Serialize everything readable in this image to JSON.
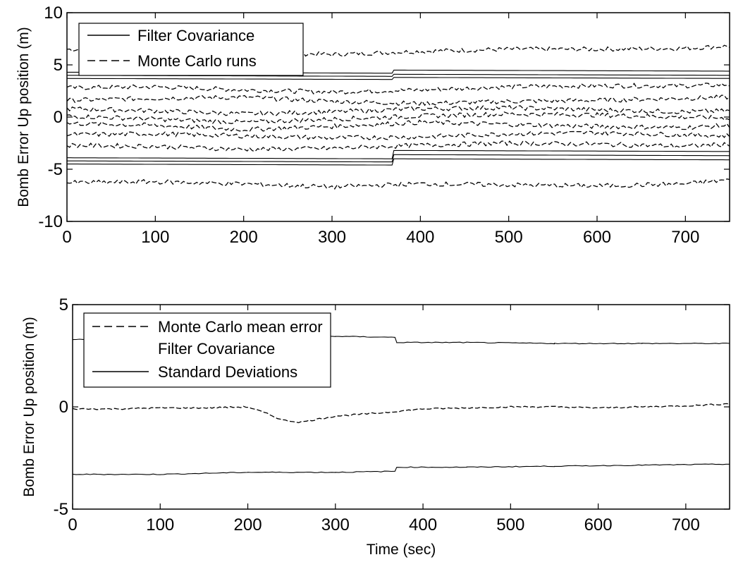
{
  "chart_data": [
    {
      "type": "line",
      "title": "",
      "xlabel": "",
      "ylabel": "Bomb Error Up position (m)",
      "xlim": [
        0,
        750
      ],
      "ylim": [
        -10,
        10
      ],
      "xticks": [
        "0",
        "100",
        "200",
        "300",
        "400",
        "500",
        "600",
        "700"
      ],
      "yticks": [
        "-10",
        "-5",
        "0",
        "5",
        "10"
      ],
      "legend_position": "top-left",
      "legend": [
        {
          "label": "Filter Covariance",
          "style": "solid"
        },
        {
          "label": "Monte Carlo runs",
          "style": "dashed"
        }
      ],
      "series": [
        {
          "style": "solid",
          "x": [
            0,
            370,
            370,
            750
          ],
          "values": [
            4.3,
            4.2,
            4.5,
            4.4
          ]
        },
        {
          "style": "solid",
          "x": [
            0,
            370,
            370,
            750
          ],
          "values": [
            4.0,
            3.9,
            4.1,
            4.0
          ]
        },
        {
          "style": "solid",
          "x": [
            0,
            370,
            370,
            750
          ],
          "values": [
            3.7,
            3.6,
            3.8,
            3.7
          ]
        },
        {
          "style": "solid",
          "x": [
            0,
            370,
            370,
            750
          ],
          "values": [
            -3.9,
            -4.0,
            -3.2,
            -3.3
          ]
        },
        {
          "style": "solid",
          "x": [
            0,
            370,
            370,
            750
          ],
          "values": [
            -4.2,
            -4.3,
            -3.6,
            -3.7
          ]
        },
        {
          "style": "solid",
          "x": [
            0,
            370,
            370,
            750
          ],
          "values": [
            -4.5,
            -4.6,
            -4.0,
            -4.1
          ]
        },
        {
          "style": "dashed",
          "x": [
            0,
            100,
            200,
            300,
            400,
            500,
            600,
            700,
            750
          ],
          "values": [
            6.5,
            6.3,
            6.2,
            6.0,
            6.3,
            6.5,
            6.5,
            6.6,
            6.8
          ]
        },
        {
          "style": "dashed",
          "x": [
            0,
            100,
            200,
            300,
            400,
            500,
            600,
            700,
            750
          ],
          "values": [
            2.8,
            2.9,
            2.6,
            2.4,
            2.6,
            2.9,
            3.0,
            3.0,
            3.1
          ]
        },
        {
          "style": "dashed",
          "x": [
            0,
            100,
            200,
            300,
            400,
            500,
            600,
            700,
            750
          ],
          "values": [
            1.6,
            1.8,
            1.9,
            1.5,
            1.3,
            1.5,
            1.6,
            1.8,
            1.9
          ]
        },
        {
          "style": "dashed",
          "x": [
            0,
            100,
            200,
            300,
            400,
            500,
            600,
            700,
            750
          ],
          "values": [
            0.8,
            0.6,
            0.3,
            0.5,
            0.8,
            0.9,
            0.7,
            0.5,
            0.6
          ]
        },
        {
          "style": "dashed",
          "x": [
            0,
            100,
            200,
            300,
            400,
            500,
            600,
            700,
            750
          ],
          "values": [
            0.1,
            -0.2,
            -0.5,
            -0.2,
            0.1,
            0.3,
            0.2,
            0.0,
            -0.1
          ]
        },
        {
          "style": "dashed",
          "x": [
            0,
            100,
            200,
            300,
            400,
            500,
            600,
            700,
            750
          ],
          "values": [
            -0.6,
            -0.8,
            -1.2,
            -0.9,
            -0.5,
            -0.7,
            -0.9,
            -1.0,
            -0.8
          ]
        },
        {
          "style": "dashed",
          "x": [
            0,
            100,
            200,
            300,
            400,
            500,
            600,
            700,
            750
          ],
          "values": [
            -1.7,
            -1.6,
            -1.8,
            -2.0,
            -1.9,
            -1.6,
            -1.5,
            -1.7,
            -1.8
          ]
        },
        {
          "style": "dashed",
          "x": [
            0,
            100,
            200,
            300,
            400,
            500,
            600,
            700,
            750
          ],
          "values": [
            -2.7,
            -2.8,
            -3.1,
            -3.0,
            -2.7,
            -2.5,
            -2.6,
            -2.8,
            -2.6
          ]
        },
        {
          "style": "dashed",
          "x": [
            0,
            100,
            200,
            300,
            400,
            500,
            600,
            700,
            750
          ],
          "values": [
            -6.3,
            -6.2,
            -6.4,
            -6.7,
            -6.4,
            -6.5,
            -6.6,
            -6.4,
            -6.0
          ]
        }
      ]
    },
    {
      "type": "line",
      "title": "",
      "xlabel": "Time (sec)",
      "ylabel": "Bomb Error Up position (m)",
      "xlim": [
        0,
        750
      ],
      "ylim": [
        -5,
        5
      ],
      "xticks": [
        "0",
        "100",
        "200",
        "300",
        "400",
        "500",
        "600",
        "700"
      ],
      "yticks": [
        "-5",
        "0",
        "5"
      ],
      "legend_position": "top-left",
      "legend": [
        {
          "label": "Monte Carlo mean error",
          "style": "dashed"
        },
        {
          "label": "Filter Covariance",
          "style": "none"
        },
        {
          "label": "Standard Deviations",
          "style": "solid"
        }
      ],
      "series": [
        {
          "style": "dashed",
          "x": [
            0,
            50,
            100,
            150,
            200,
            220,
            240,
            260,
            280,
            300,
            350,
            400,
            450,
            500,
            550,
            600,
            650,
            700,
            750
          ],
          "values": [
            -0.1,
            -0.1,
            -0.05,
            -0.05,
            0.0,
            -0.3,
            -0.65,
            -0.75,
            -0.6,
            -0.45,
            -0.3,
            -0.1,
            -0.05,
            0.0,
            0.0,
            -0.05,
            0.0,
            0.05,
            0.15
          ]
        },
        {
          "style": "solid",
          "x": [
            0,
            100,
            200,
            300,
            370,
            370,
            450,
            550,
            650,
            750
          ],
          "values": [
            3.3,
            3.3,
            3.35,
            3.45,
            3.4,
            3.15,
            3.15,
            3.1,
            3.1,
            3.1
          ]
        },
        {
          "style": "solid",
          "x": [
            0,
            100,
            200,
            300,
            370,
            370,
            450,
            550,
            650,
            750
          ],
          "values": [
            -3.3,
            -3.3,
            -3.2,
            -3.2,
            -3.15,
            -2.95,
            -2.95,
            -2.9,
            -2.85,
            -2.8
          ]
        }
      ]
    }
  ]
}
